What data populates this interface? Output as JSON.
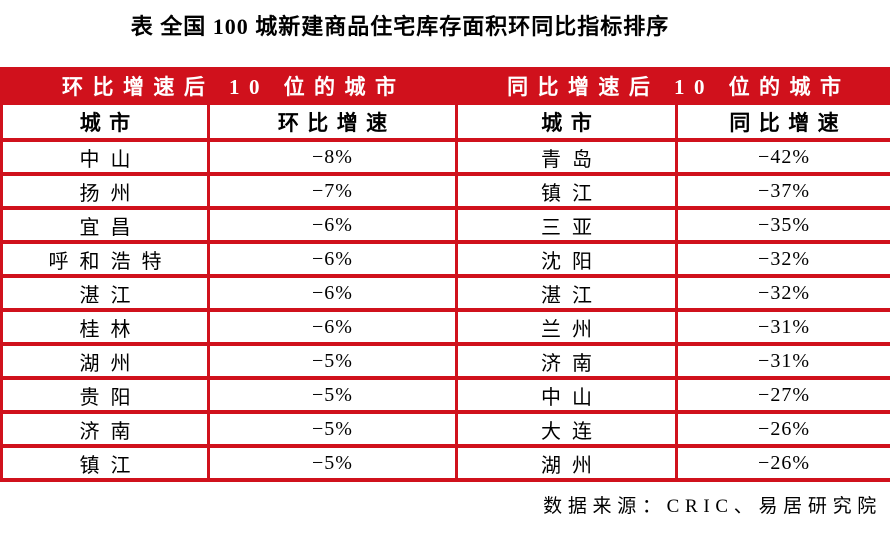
{
  "page": {
    "title": "表 全国 100 城新建商品住宅库存面积环同比指标排序",
    "source_note": "数据来源：CRIC、易居研究院",
    "accent_color": "#d0111c"
  },
  "table": {
    "group_headers": [
      "环比增速后 10 位的城市",
      "同比增速后 10 位的城市"
    ],
    "column_headers": [
      "城市",
      "环比增速",
      "城市",
      "同比增速"
    ],
    "rows": [
      [
        "中山",
        "−8%",
        "青岛",
        "−42%"
      ],
      [
        "扬州",
        "−7%",
        "镇江",
        "−37%"
      ],
      [
        "宜昌",
        "−6%",
        "三亚",
        "−35%"
      ],
      [
        "呼和浩特",
        "−6%",
        "沈阳",
        "−32%"
      ],
      [
        "湛江",
        "−6%",
        "湛江",
        "−32%"
      ],
      [
        "桂林",
        "−6%",
        "兰州",
        "−31%"
      ],
      [
        "湖州",
        "−5%",
        "济南",
        "−31%"
      ],
      [
        "贵阳",
        "−5%",
        "中山",
        "−27%"
      ],
      [
        "济南",
        "−5%",
        "大连",
        "−26%"
      ],
      [
        "镇江",
        "−5%",
        "湖州",
        "−26%"
      ]
    ]
  },
  "chart_data": {
    "type": "table",
    "title": "表 全国 100 城新建商品住宅库存面积环同比指标排序",
    "source": "数据来源：CRIC、易居研究院",
    "sections": [
      {
        "header": "环比增速后 10 位的城市",
        "columns": [
          "城市",
          "环比增速"
        ],
        "rows": [
          {
            "city": "中山",
            "pct_change": -8
          },
          {
            "city": "扬州",
            "pct_change": -7
          },
          {
            "city": "宜昌",
            "pct_change": -6
          },
          {
            "city": "呼和浩特",
            "pct_change": -6
          },
          {
            "city": "湛江",
            "pct_change": -6
          },
          {
            "city": "桂林",
            "pct_change": -6
          },
          {
            "city": "湖州",
            "pct_change": -5
          },
          {
            "city": "贵阳",
            "pct_change": -5
          },
          {
            "city": "济南",
            "pct_change": -5
          },
          {
            "city": "镇江",
            "pct_change": -5
          }
        ]
      },
      {
        "header": "同比增速后 10 位的城市",
        "columns": [
          "城市",
          "同比增速"
        ],
        "rows": [
          {
            "city": "青岛",
            "pct_change": -42
          },
          {
            "city": "镇江",
            "pct_change": -37
          },
          {
            "city": "三亚",
            "pct_change": -35
          },
          {
            "city": "沈阳",
            "pct_change": -32
          },
          {
            "city": "湛江",
            "pct_change": -32
          },
          {
            "city": "兰州",
            "pct_change": -31
          },
          {
            "city": "济南",
            "pct_change": -31
          },
          {
            "city": "中山",
            "pct_change": -27
          },
          {
            "city": "大连",
            "pct_change": -26
          },
          {
            "city": "湖州",
            "pct_change": -26
          }
        ]
      }
    ]
  }
}
